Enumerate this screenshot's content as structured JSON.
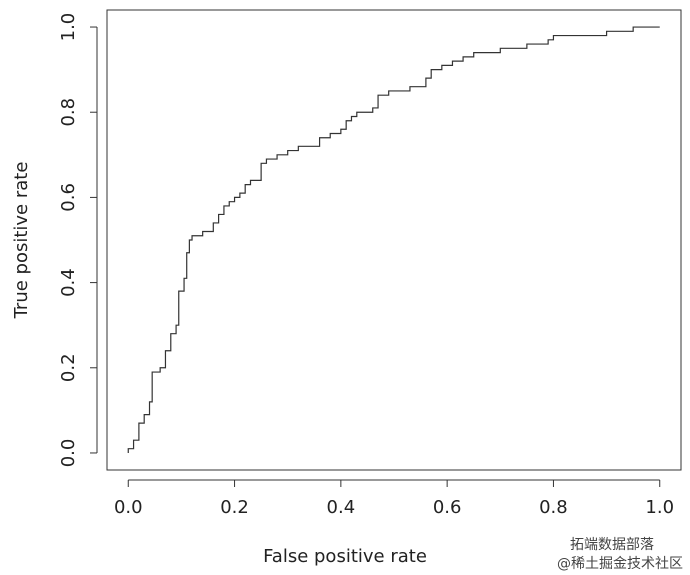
{
  "chart_data": {
    "type": "line",
    "x_label": "False positive rate",
    "y_label": "True positive rate",
    "color": "#333333",
    "x": [
      0,
      0,
      0.01,
      0.01,
      0.02,
      0.02,
      0.03,
      0.03,
      0.04,
      0.04,
      0.045,
      0.045,
      0.06,
      0.06,
      0.07,
      0.07,
      0.08,
      0.08,
      0.09,
      0.09,
      0.095,
      0.095,
      0.105,
      0.105,
      0.11,
      0.11,
      0.115,
      0.115,
      0.12,
      0.12,
      0.14,
      0.14,
      0.16,
      0.16,
      0.17,
      0.17,
      0.18,
      0.18,
      0.19,
      0.19,
      0.2,
      0.2,
      0.21,
      0.21,
      0.22,
      0.22,
      0.23,
      0.23,
      0.25,
      0.25,
      0.26,
      0.26,
      0.28,
      0.28,
      0.3,
      0.3,
      0.32,
      0.32,
      0.36,
      0.36,
      0.38,
      0.38,
      0.4,
      0.4,
      0.41,
      0.41,
      0.42,
      0.42,
      0.43,
      0.43,
      0.46,
      0.46,
      0.47,
      0.47,
      0.49,
      0.49,
      0.53,
      0.53,
      0.56,
      0.56,
      0.57,
      0.57,
      0.59,
      0.59,
      0.61,
      0.61,
      0.63,
      0.63,
      0.65,
      0.65,
      0.7,
      0.7,
      0.75,
      0.75,
      0.79,
      0.79,
      0.8,
      0.8,
      0.9,
      0.9,
      0.95,
      0.95,
      1
    ],
    "values": [
      0,
      0.01,
      0.01,
      0.03,
      0.03,
      0.07,
      0.07,
      0.09,
      0.09,
      0.12,
      0.12,
      0.19,
      0.19,
      0.2,
      0.2,
      0.24,
      0.24,
      0.28,
      0.28,
      0.3,
      0.3,
      0.38,
      0.38,
      0.41,
      0.41,
      0.47,
      0.47,
      0.5,
      0.5,
      0.51,
      0.51,
      0.52,
      0.52,
      0.54,
      0.54,
      0.56,
      0.56,
      0.58,
      0.58,
      0.59,
      0.59,
      0.6,
      0.6,
      0.61,
      0.61,
      0.63,
      0.63,
      0.64,
      0.64,
      0.68,
      0.68,
      0.69,
      0.69,
      0.7,
      0.7,
      0.71,
      0.71,
      0.72,
      0.72,
      0.74,
      0.74,
      0.75,
      0.75,
      0.76,
      0.76,
      0.78,
      0.78,
      0.79,
      0.79,
      0.8,
      0.8,
      0.81,
      0.81,
      0.84,
      0.84,
      0.85,
      0.85,
      0.86,
      0.86,
      0.88,
      0.88,
      0.9,
      0.9,
      0.91,
      0.91,
      0.92,
      0.92,
      0.93,
      0.93,
      0.94,
      0.94,
      0.95,
      0.95,
      0.96,
      0.96,
      0.97,
      0.97,
      0.98,
      0.98,
      0.99,
      0.99,
      1,
      1
    ],
    "xlim": [
      -0.04,
      1.04
    ],
    "ylim": [
      -0.04,
      1.04
    ],
    "xticks": [
      {
        "value": 0,
        "label": "0.0"
      },
      0.2,
      0.4,
      0.6,
      0.8,
      {
        "value": 1,
        "label": "1.0"
      }
    ],
    "yticks": [
      {
        "value": 0,
        "label": "0.0"
      },
      0.2,
      0.4,
      0.6,
      0.8,
      {
        "value": 1,
        "label": "1.0"
      }
    ],
    "watermark": [
      "拓端数据部落",
      "@稀土掘金技术社区"
    ]
  }
}
